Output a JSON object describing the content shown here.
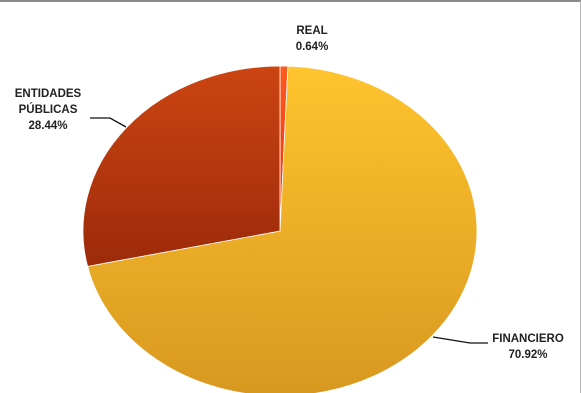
{
  "chart_data": {
    "type": "pie",
    "title": "",
    "categories": [
      "REAL",
      "FINANCIERO",
      "ENTIDADES PÚBLICAS"
    ],
    "values": [
      0.64,
      70.92,
      28.44
    ],
    "value_labels": [
      "0.64%",
      "70.92%",
      "28.44%"
    ],
    "label_lines": [
      [
        "REAL"
      ],
      [
        "FINANCIERO"
      ],
      [
        "ENTIDADES",
        "PÚBLICAS"
      ]
    ],
    "colors": [
      "#ff4a1c",
      "#f5b42a",
      "#c0390f"
    ],
    "legend": "none",
    "grid": false
  }
}
